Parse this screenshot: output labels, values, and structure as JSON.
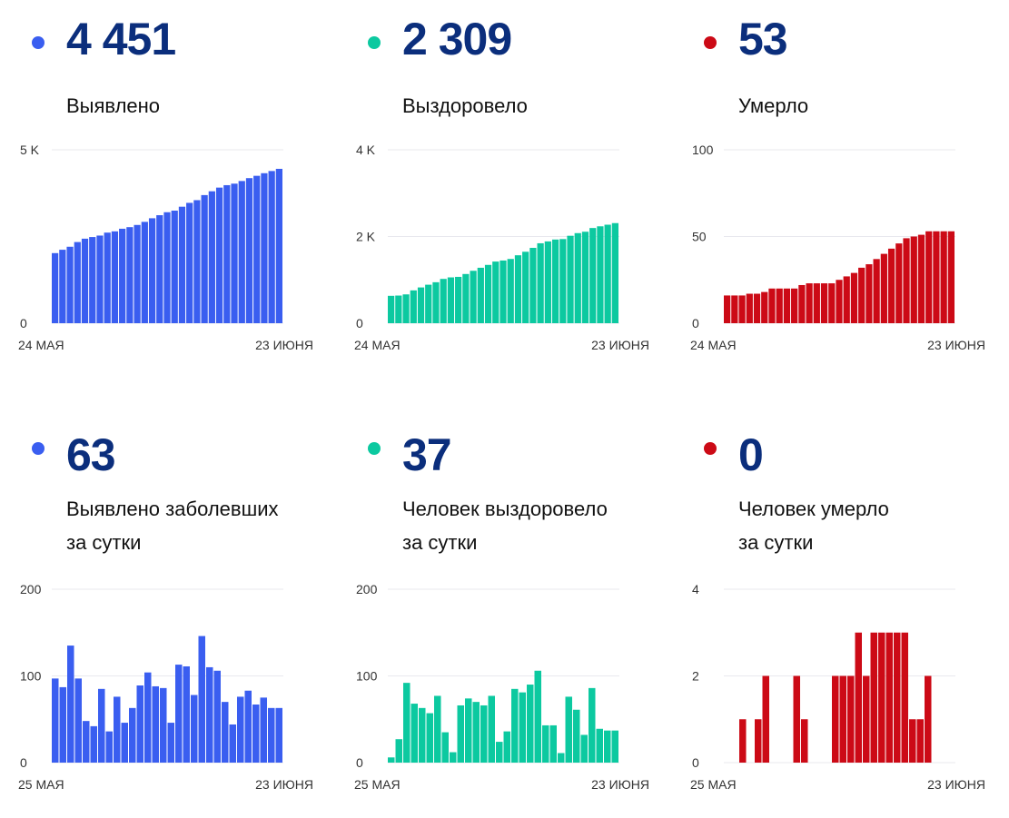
{
  "colors": {
    "blue": "#3a5ef0",
    "green": "#0cc9a0",
    "red": "#cc0a16"
  },
  "cards": [
    {
      "value": "4 451",
      "label": [
        "Выявлено"
      ],
      "color": "#3a5ef0",
      "chart_index": 0
    },
    {
      "value": "2 309",
      "label": [
        "Выздоровело"
      ],
      "color": "#0cc9a0",
      "chart_index": 1
    },
    {
      "value": "53",
      "label": [
        "Умерло"
      ],
      "color": "#cc0a16",
      "chart_index": 2
    },
    {
      "value": "63",
      "label": [
        "Выявлено заболевших",
        "за сутки"
      ],
      "color": "#3a5ef0",
      "chart_index": 3
    },
    {
      "value": "37",
      "label": [
        "Человек выздоровело",
        "за сутки"
      ],
      "color": "#0cc9a0",
      "chart_index": 4
    },
    {
      "value": "0",
      "label": [
        "Человек умерло",
        "за сутки"
      ],
      "color": "#cc0a16",
      "chart_index": 5
    }
  ],
  "chart_data": [
    {
      "type": "bar",
      "title": "Выявлено",
      "x_start": "24 МАЯ",
      "x_end": "23 ИЮНЯ",
      "ylim": [
        0,
        5000
      ],
      "yticks": [
        0,
        5000
      ],
      "ytick_labels": [
        "0",
        "5 K"
      ],
      "values": [
        2021,
        2118,
        2205,
        2340,
        2437,
        2485,
        2527,
        2612,
        2648,
        2724,
        2770,
        2833,
        2922,
        3026,
        3114,
        3200,
        3246,
        3359,
        3470,
        3548,
        3694,
        3804,
        3910,
        3980,
        4024,
        4100,
        4183,
        4250,
        4325,
        4388,
        4451
      ]
    },
    {
      "type": "bar",
      "title": "Выздоровело",
      "x_start": "24 МАЯ",
      "x_end": "23 ИЮНЯ",
      "ylim": [
        0,
        4000
      ],
      "yticks": [
        0,
        2000,
        4000
      ],
      "ytick_labels": [
        "0",
        "2 K",
        "4 K"
      ],
      "values": [
        632,
        638,
        665,
        757,
        825,
        888,
        945,
        1022,
        1057,
        1069,
        1135,
        1209,
        1279,
        1345,
        1422,
        1446,
        1482,
        1567,
        1648,
        1738,
        1844,
        1887,
        1930,
        1941,
        2017,
        2078,
        2110,
        2196,
        2235,
        2272,
        2309
      ]
    },
    {
      "type": "bar",
      "title": "Умерло",
      "x_start": "24 МАЯ",
      "x_end": "23 ИЮНЯ",
      "ylim": [
        0,
        100
      ],
      "yticks": [
        0,
        50,
        100
      ],
      "ytick_labels": [
        "0",
        "50",
        "100"
      ],
      "values": [
        16,
        16,
        16,
        17,
        17,
        18,
        20,
        20,
        20,
        20,
        22,
        23,
        23,
        23,
        23,
        25,
        27,
        29,
        32,
        34,
        37,
        40,
        43,
        46,
        49,
        50,
        51,
        53,
        53,
        53,
        53
      ]
    },
    {
      "type": "bar",
      "title": "Выявлено заболевших за сутки",
      "x_start": "25 МАЯ",
      "x_end": "23 ИЮНЯ",
      "ylim": [
        0,
        200
      ],
      "yticks": [
        0,
        100,
        200
      ],
      "ytick_labels": [
        "0",
        "100",
        "200"
      ],
      "values": [
        97,
        87,
        135,
        97,
        48,
        42,
        85,
        36,
        76,
        46,
        63,
        89,
        104,
        88,
        86,
        46,
        113,
        111,
        78,
        146,
        110,
        106,
        70,
        44,
        76,
        83,
        67,
        75,
        63,
        63
      ]
    },
    {
      "type": "bar",
      "title": "Человек выздоровело за сутки",
      "x_start": "25 МАЯ",
      "x_end": "23 ИЮНЯ",
      "ylim": [
        0,
        200
      ],
      "yticks": [
        0,
        100,
        200
      ],
      "ytick_labels": [
        "0",
        "100",
        "200"
      ],
      "values": [
        6,
        27,
        92,
        68,
        63,
        57,
        77,
        35,
        12,
        66,
        74,
        70,
        66,
        77,
        24,
        36,
        85,
        81,
        90,
        106,
        43,
        43,
        11,
        76,
        61,
        32,
        86,
        39,
        37,
        37
      ]
    },
    {
      "type": "bar",
      "title": "Человек умерло за сутки",
      "x_start": "25 МАЯ",
      "x_end": "23 ИЮНЯ",
      "ylim": [
        0,
        4
      ],
      "yticks": [
        0,
        2,
        4
      ],
      "ytick_labels": [
        "0",
        "2",
        "4"
      ],
      "values": [
        0,
        0,
        1,
        0,
        1,
        2,
        0,
        0,
        0,
        2,
        1,
        0,
        0,
        0,
        2,
        2,
        2,
        3,
        2,
        3,
        3,
        3,
        3,
        3,
        1,
        1,
        2,
        0,
        0,
        0
      ]
    }
  ]
}
